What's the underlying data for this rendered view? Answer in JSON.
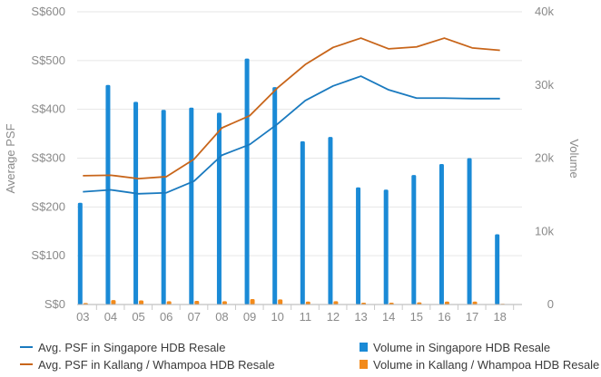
{
  "chart_data": {
    "type": "bar-line-combo",
    "categories": [
      "03",
      "04",
      "05",
      "06",
      "07",
      "08",
      "09",
      "10",
      "11",
      "12",
      "13",
      "14",
      "15",
      "16",
      "17",
      "18"
    ],
    "y_left": {
      "label": "Average PSF",
      "ticks": [
        "S$0",
        "S$100",
        "S$200",
        "S$300",
        "S$400",
        "S$500",
        "S$600"
      ],
      "range": [
        0,
        600
      ]
    },
    "y_right": {
      "label": "Volume",
      "ticks": [
        "0",
        "10k",
        "20k",
        "30k",
        "40k"
      ],
      "range": [
        0,
        40000
      ]
    },
    "bar_series": [
      {
        "name": "Volume in Singapore HDB Resale",
        "color": "#1a8ad6",
        "values": [
          13900,
          30000,
          27700,
          26600,
          26900,
          26200,
          33600,
          29700,
          22300,
          22900,
          16000,
          15700,
          17700,
          19200,
          20000,
          9600
        ]
      },
      {
        "name": "Volume in Kallang / Whampoa HDB Resale",
        "color": "#f28a1b",
        "values": [
          200,
          600,
          550,
          450,
          500,
          450,
          750,
          700,
          400,
          450,
          250,
          250,
          300,
          400,
          400,
          100
        ]
      }
    ],
    "line_series": [
      {
        "name": "Avg. PSF in Singapore HDB Resale",
        "color": "#1a7abf",
        "values": [
          231,
          235,
          227,
          229,
          253,
          306,
          328,
          370,
          418,
          448,
          468,
          440,
          423,
          423,
          422,
          422
        ]
      },
      {
        "name": "Avg. PSF in Kallang / Whampoa HDB Resale",
        "color": "#c8651a",
        "values": [
          264,
          265,
          258,
          262,
          298,
          362,
          387,
          444,
          492,
          527,
          546,
          524,
          528,
          546,
          526,
          521
        ]
      }
    ],
    "grid": "horizontal",
    "legend": "bottom"
  }
}
